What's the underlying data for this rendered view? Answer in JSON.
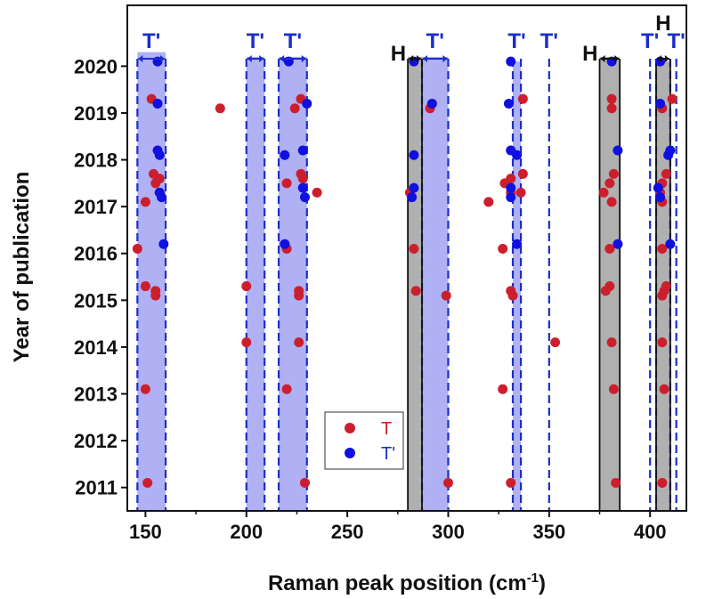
{
  "chart_data": {
    "type": "scatter",
    "xlabel_main": "Raman peak position (cm",
    "xlabel_sup": "-1",
    "xlabel_end": ")",
    "ylabel": "Year of publication",
    "xlim": [
      141,
      418
    ],
    "ylim": [
      2010.5,
      2021.3
    ],
    "xticks": [
      150,
      200,
      250,
      300,
      350,
      400
    ],
    "yticks": [
      2011,
      2012,
      2013,
      2014,
      2015,
      2016,
      2017,
      2018,
      2019,
      2020
    ],
    "legend": {
      "placement": "bottom-center",
      "entries": [
        {
          "label": "T",
          "color": "#cc1f2e",
          "text_color": "#cc1f2e"
        },
        {
          "label": "T'",
          "color": "#1010e0",
          "text_color": "#1b2ec8"
        }
      ]
    },
    "colors": {
      "T": "#cc1f2e",
      "T_prime": "#1010e0",
      "T_prime_band": "#b0b0f5",
      "H_band": "#b0b0b0",
      "T_prime_label": "#1b2ec8",
      "H_label": "#111111"
    },
    "bands": [
      {
        "kind": "T'",
        "x0": 146,
        "x1": 160,
        "top": 2020.3
      },
      {
        "kind": "T'",
        "x0": 200,
        "x1": 209,
        "top": 2020.2
      },
      {
        "kind": "T'",
        "x0": 216,
        "x1": 230,
        "top": 2020.2
      },
      {
        "kind": "H",
        "x0": 280,
        "x1": 287,
        "top": 2020.2
      },
      {
        "kind": "T'",
        "x0": 287,
        "x1": 300,
        "top": 2020.2
      },
      {
        "kind": "T'",
        "x0": 332,
        "x1": 336,
        "top": 2020.1
      },
      {
        "kind": "H",
        "x0": 375,
        "x1": 385,
        "top": 2020.2
      },
      {
        "kind": "H",
        "x0": 403,
        "x1": 410,
        "top": 2020.1
      }
    ],
    "dashed_lines": [
      146,
      160,
      200,
      209,
      216,
      230,
      287,
      300,
      332,
      336,
      350,
      400,
      403,
      410,
      413
    ],
    "solid_lines": [
      280,
      287,
      375,
      385,
      403,
      410
    ],
    "band_labels": [
      {
        "text": "T'",
        "kind": "T'",
        "x0": 146,
        "x1": 160
      },
      {
        "text": "T'",
        "kind": "T'",
        "x0": 200,
        "x1": 209
      },
      {
        "text": "T'",
        "kind": "T'",
        "x0": 216,
        "x1": 230
      },
      {
        "text": "H",
        "kind": "H",
        "x0": 280,
        "x1": 287
      },
      {
        "text": "T'",
        "kind": "T'",
        "x0": 287,
        "x1": 300
      },
      {
        "text": "T'",
        "kind": "T'",
        "x0": 332,
        "x1": 336,
        "no_arrow": true
      },
      {
        "text": "T'",
        "kind": "T'",
        "x0": 350,
        "x1": 350,
        "no_arrow": true
      },
      {
        "text": "H",
        "kind": "H",
        "x0": 375,
        "x1": 385
      },
      {
        "text": "T'",
        "kind": "T'",
        "x0": 400,
        "x1": 400,
        "no_arrow": true
      },
      {
        "text": "H",
        "kind": "H",
        "x0": 403,
        "x1": 410,
        "high": true
      },
      {
        "text": "T'",
        "kind": "T'",
        "x0": 413,
        "x1": 413,
        "no_arrow": true
      }
    ],
    "series": [
      {
        "name": "T",
        "points": [
          [
            151,
            2011.1
          ],
          [
            229,
            2011.1
          ],
          [
            300,
            2011.1
          ],
          [
            331,
            2011.1
          ],
          [
            383,
            2011.1
          ],
          [
            406,
            2011.1
          ],
          [
            150,
            2013.1
          ],
          [
            220,
            2013.1
          ],
          [
            327,
            2013.1
          ],
          [
            382,
            2013.1
          ],
          [
            407,
            2013.1
          ],
          [
            200,
            2014.1
          ],
          [
            226,
            2014.1
          ],
          [
            353,
            2014.1
          ],
          [
            381,
            2014.1
          ],
          [
            406,
            2014.1
          ],
          [
            150,
            2015.3
          ],
          [
            155,
            2015.2
          ],
          [
            155,
            2015.1
          ],
          [
            200,
            2015.3
          ],
          [
            226,
            2015.2
          ],
          [
            226,
            2015.1
          ],
          [
            284,
            2015.2
          ],
          [
            299,
            2015.1
          ],
          [
            331,
            2015.2
          ],
          [
            332,
            2015.1
          ],
          [
            378,
            2015.2
          ],
          [
            380,
            2015.3
          ],
          [
            406,
            2015.1
          ],
          [
            408,
            2015.3
          ],
          [
            407,
            2015.2
          ],
          [
            146,
            2016.1
          ],
          [
            220,
            2016.1
          ],
          [
            283,
            2016.1
          ],
          [
            327,
            2016.1
          ],
          [
            380,
            2016.1
          ],
          [
            406,
            2016.1
          ],
          [
            150,
            2017.1
          ],
          [
            157,
            2017.3
          ],
          [
            235,
            2017.3
          ],
          [
            281,
            2017.3
          ],
          [
            320,
            2017.1
          ],
          [
            331,
            2017.3
          ],
          [
            336,
            2017.3
          ],
          [
            377,
            2017.3
          ],
          [
            381,
            2017.1
          ],
          [
            406,
            2017.1
          ],
          [
            405,
            2017.3
          ],
          [
            154,
            2017.7
          ],
          [
            155,
            2017.5
          ],
          [
            157,
            2017.6
          ],
          [
            220,
            2017.5
          ],
          [
            227,
            2017.7
          ],
          [
            228,
            2017.6
          ],
          [
            328,
            2017.5
          ],
          [
            331,
            2017.6
          ],
          [
            337,
            2017.7
          ],
          [
            380,
            2017.5
          ],
          [
            382,
            2017.7
          ],
          [
            408,
            2017.7
          ],
          [
            406,
            2017.5
          ],
          [
            153,
            2019.3
          ],
          [
            187,
            2019.1
          ],
          [
            224,
            2019.1
          ],
          [
            227,
            2019.3
          ],
          [
            291,
            2019.1
          ],
          [
            337,
            2019.3
          ],
          [
            381,
            2019.3
          ],
          [
            381,
            2019.1
          ],
          [
            406,
            2019.1
          ],
          [
            411,
            2019.3
          ]
        ]
      },
      {
        "name": "T'",
        "points": [
          [
            156,
            2020.1
          ],
          [
            221,
            2020.1
          ],
          [
            283,
            2020.1
          ],
          [
            331,
            2020.1
          ],
          [
            381,
            2020.1
          ],
          [
            405,
            2020.1
          ],
          [
            156,
            2019.2
          ],
          [
            230,
            2019.2
          ],
          [
            292,
            2019.2
          ],
          [
            330,
            2019.2
          ],
          [
            405,
            2019.2
          ],
          [
            156,
            2018.2
          ],
          [
            157,
            2018.1
          ],
          [
            228,
            2018.2
          ],
          [
            219,
            2018.1
          ],
          [
            283,
            2018.1
          ],
          [
            331,
            2018.2
          ],
          [
            334,
            2018.1
          ],
          [
            384,
            2018.2
          ],
          [
            410,
            2018.2
          ],
          [
            409,
            2018.1
          ],
          [
            157,
            2017.3
          ],
          [
            158,
            2017.2
          ],
          [
            228,
            2017.4
          ],
          [
            229,
            2017.2
          ],
          [
            283,
            2017.4
          ],
          [
            282,
            2017.2
          ],
          [
            331,
            2017.4
          ],
          [
            331,
            2017.2
          ],
          [
            404,
            2017.4
          ],
          [
            405,
            2017.2
          ],
          [
            159,
            2016.2
          ],
          [
            219,
            2016.2
          ],
          [
            334,
            2016.2
          ],
          [
            384,
            2016.2
          ],
          [
            410,
            2016.2
          ]
        ]
      }
    ]
  }
}
